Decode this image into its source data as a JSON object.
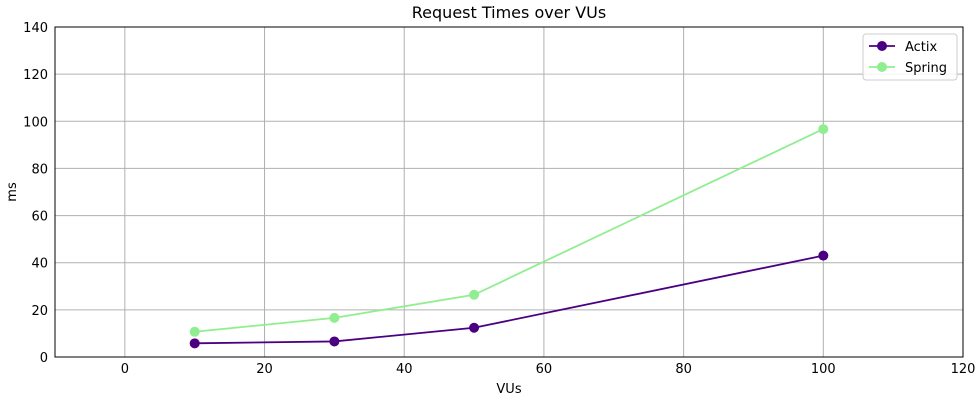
{
  "chart_data": {
    "type": "line",
    "title": "Request Times over VUs",
    "xlabel": "VUs",
    "ylabel": "ms",
    "xlim": [
      -10,
      120
    ],
    "ylim": [
      0,
      140
    ],
    "xticks": [
      0,
      20,
      40,
      60,
      80,
      100,
      120
    ],
    "yticks": [
      0,
      20,
      40,
      60,
      80,
      100,
      120,
      140
    ],
    "grid": true,
    "legend_position": "top-right",
    "x": [
      10,
      30,
      50,
      100
    ],
    "series": [
      {
        "name": "Actix",
        "color": "#4b0082",
        "values": [
          5.8,
          6.6,
          12.4,
          43.0
        ]
      },
      {
        "name": "Spring",
        "color": "#90ee90",
        "values": [
          10.7,
          16.6,
          26.4,
          96.7
        ]
      }
    ]
  }
}
